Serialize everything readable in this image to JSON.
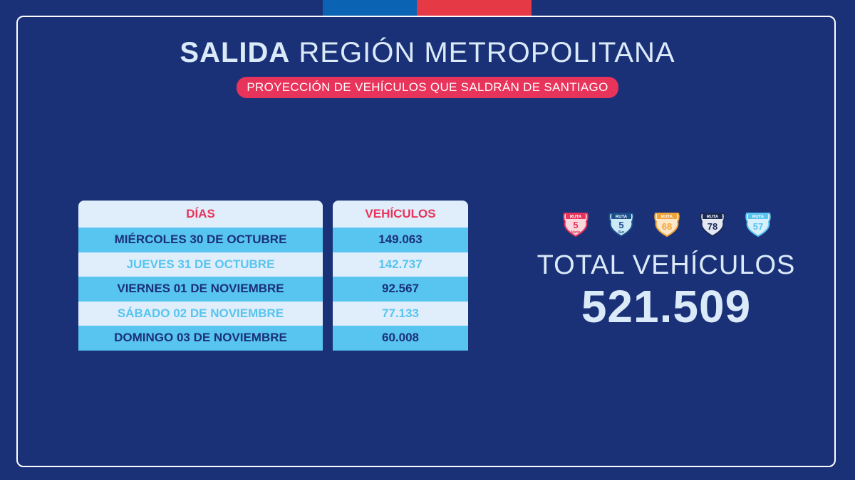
{
  "header": {
    "title_bold": "SALIDA",
    "title_rest": "REGIÓN METROPOLITANA",
    "subtitle": "PROYECCIÓN DE VEHÍCULOS QUE SALDRÁN DE SANTIAGO"
  },
  "table": {
    "col_days": "DÍAS",
    "col_vehicles": "VEHÍCULOS",
    "rows": [
      {
        "day": "MIÉRCOLES 30 DE OCTUBRE",
        "vehicles": "149.063"
      },
      {
        "day": "JUEVES 31 DE OCTUBRE",
        "vehicles": "142.737"
      },
      {
        "day": "VIERNES 01 DE NOVIEMBRE",
        "vehicles": "92.567"
      },
      {
        "day": "SÁBADO 02 DE NOVIEMBRE",
        "vehicles": "77.133"
      },
      {
        "day": "DOMINGO 03 DE NOVIEMBRE",
        "vehicles": "60.008"
      }
    ]
  },
  "badges": [
    {
      "top": "RUTA",
      "num": "5",
      "sub": "Norte",
      "color": "#e8335a",
      "fill": "#f8d7de"
    },
    {
      "top": "RUTA",
      "num": "5",
      "sub": "Sur",
      "color": "#1a4f8a",
      "fill": "#cdeaf7"
    },
    {
      "top": "RUTA",
      "num": "68",
      "sub": "",
      "color": "#f0a43a",
      "fill": "#fde7c8"
    },
    {
      "top": "RUTA",
      "num": "78",
      "sub": "",
      "color": "#1a2a55",
      "fill": "#e3e8f2"
    },
    {
      "top": "RUTA",
      "num": "57",
      "sub": "",
      "color": "#58c4f0",
      "fill": "#d8f0fb"
    }
  ],
  "total": {
    "label": "TOTAL VEHÍCULOS",
    "value": "521.509"
  },
  "chart_data": {
    "type": "table",
    "categories": [
      "MIÉRCOLES 30 DE OCTUBRE",
      "JUEVES 31 DE OCTUBRE",
      "VIERNES 01 DE NOVIEMBRE",
      "SÁBADO 02 DE NOVIEMBRE",
      "DOMINGO 03 DE NOVIEMBRE"
    ],
    "values": [
      149063,
      142737,
      92567,
      77133,
      60008
    ],
    "total": 521509
  }
}
